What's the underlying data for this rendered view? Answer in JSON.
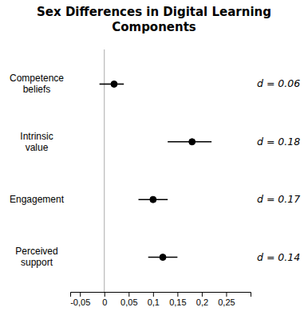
{
  "chart_data": {
    "type": "errorbar",
    "title": "Sex Differences in Digital Learning\nComponents",
    "orientation": "horizontal",
    "categories": [
      "Competence\nbeliefs",
      "Intrinsic\nvalue",
      "Engagement",
      "Perceived\nsupport"
    ],
    "values": [
      0.02,
      0.18,
      0.1,
      0.12
    ],
    "error_lower": [
      0.03,
      0.05,
      0.03,
      0.03
    ],
    "error_upper": [
      0.02,
      0.04,
      0.03,
      0.03
    ],
    "annotations": [
      "d = 0.06",
      "d = 0.18",
      "d = 0.17",
      "d = 0.14"
    ],
    "xlim": [
      -0.07,
      0.3
    ],
    "xticks": [
      {
        "value": -0.05,
        "label": "-0,05"
      },
      0,
      {
        "value": 0.05,
        "label": "0,05"
      },
      {
        "value": 0.1,
        "label": "0,1"
      },
      {
        "value": 0.15,
        "label": "0,15"
      },
      {
        "value": 0.2,
        "label": "0,2"
      },
      {
        "value": 0.25,
        "label": "0,25"
      }
    ],
    "vline": 0,
    "color": "#000000",
    "grid": false
  }
}
